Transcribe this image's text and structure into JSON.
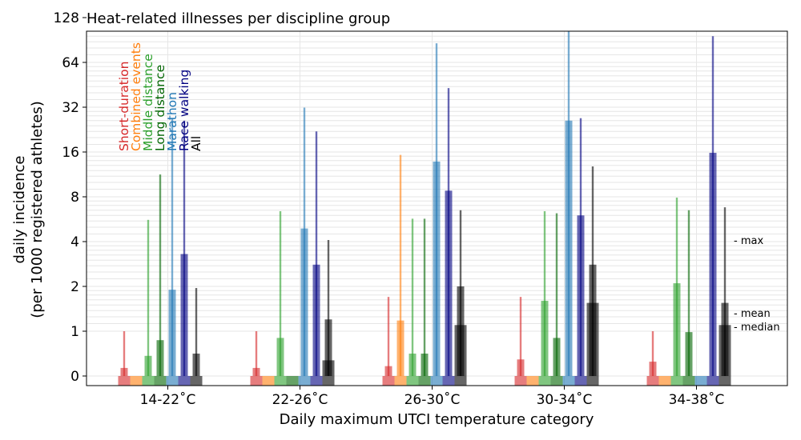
{
  "chart_data": {
    "type": "bar",
    "title": "Heat-related illnesses per discipline group",
    "xlabel": "Daily maximum UTCI temperature category",
    "ylabel_line1": "daily incidence",
    "ylabel_line2": "(per 1000 registered athletes)",
    "y_scale": "symlog",
    "ylim": [
      -0.3,
      230
    ],
    "y_ticks": [
      0,
      1,
      2,
      4,
      8,
      16,
      32,
      64,
      128
    ],
    "y_tick_labels": [
      "0",
      "1",
      "2",
      "4",
      "8",
      "16",
      "32",
      "64",
      "128"
    ],
    "categories": [
      "14-22˚C",
      "22-26˚C",
      "26-30˚C",
      "30-34˚C",
      "34-38˚C"
    ],
    "stat_labels": {
      "max": "- max",
      "mean": "- mean",
      "median": "- median"
    },
    "series": [
      {
        "name": "Short-duration",
        "color": "#d62728",
        "max": [
          1.0,
          1.0,
          1.7,
          1.7,
          1.0
        ],
        "mean": [
          0.18,
          0.18,
          0.22,
          0.37,
          0.32
        ],
        "median": [
          0,
          0,
          0,
          0,
          0
        ]
      },
      {
        "name": "Combined events",
        "color": "#ff7f0e",
        "max": [
          0,
          0,
          15.3,
          0,
          0
        ],
        "mean": [
          0,
          0,
          1.18,
          0,
          0
        ],
        "median": [
          0,
          0,
          0,
          0,
          0
        ]
      },
      {
        "name": "Middle distance",
        "color": "#2ca02c",
        "max": [
          5.6,
          6.4,
          5.7,
          6.4,
          7.9
        ],
        "mean": [
          0.45,
          0.85,
          0.5,
          1.6,
          2.1
        ],
        "median": [
          0,
          0,
          0,
          0,
          0
        ]
      },
      {
        "name": "Long distance",
        "color": "#006400",
        "max": [
          11.3,
          0,
          5.7,
          6.2,
          6.5
        ],
        "mean": [
          0.8,
          0,
          0.5,
          0.85,
          0.98
        ],
        "median": [
          0,
          0,
          0,
          0,
          0
        ]
      },
      {
        "name": "Marathon",
        "color": "#1f77b4",
        "max": [
          26.8,
          31.8,
          86.0,
          146.0,
          0
        ],
        "mean": [
          1.9,
          4.9,
          13.8,
          26.0,
          0
        ],
        "median": [
          0,
          0,
          0,
          0,
          0
        ]
      },
      {
        "name": "Race walking",
        "color": "#000080",
        "max": [
          26.0,
          22.0,
          43.0,
          27.0,
          96.0
        ],
        "mean": [
          3.3,
          2.8,
          8.8,
          6.0,
          15.8
        ],
        "median": [
          0,
          0,
          0,
          0,
          0
        ]
      },
      {
        "name": "All",
        "color": "#000000",
        "max": [
          1.95,
          4.1,
          6.5,
          12.8,
          6.8
        ],
        "mean": [
          0.5,
          1.2,
          2.0,
          2.8,
          1.55
        ],
        "median": [
          0,
          0.35,
          1.1,
          1.55,
          1.1
        ]
      }
    ]
  }
}
